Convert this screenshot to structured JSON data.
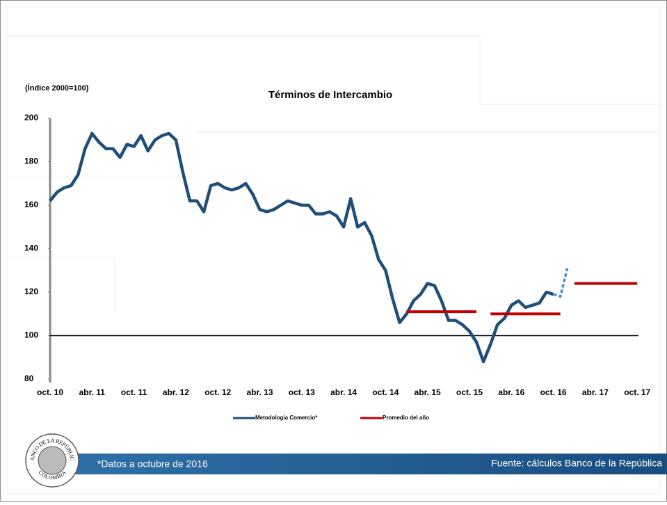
{
  "chart_data": {
    "type": "line",
    "title": "Términos de Intercambio",
    "y_label": "(Índice 2000=100)",
    "categories": [
      "oct. 10",
      null,
      null,
      null,
      null,
      null,
      "abr. 11",
      null,
      null,
      null,
      null,
      null,
      "oct. 11",
      null,
      null,
      null,
      null,
      null,
      "abr. 12",
      null,
      null,
      null,
      null,
      null,
      "oct. 12",
      null,
      null,
      null,
      null,
      null,
      "abr. 13",
      null,
      null,
      null,
      null,
      null,
      "oct. 13",
      null,
      null,
      null,
      null,
      null,
      "abr. 14",
      null,
      null,
      null,
      null,
      null,
      "oct. 14",
      null,
      null,
      null,
      null,
      null,
      "abr. 15",
      null,
      null,
      null,
      null,
      null,
      "oct. 15",
      null,
      null,
      null,
      null,
      null,
      "abr. 16",
      null,
      null,
      null,
      null,
      null,
      "oct. 16",
      null,
      null,
      null,
      null,
      null,
      "abr. 17",
      null,
      null,
      null,
      null,
      null,
      "oct. 17"
    ],
    "series": [
      {
        "name": "Metodología Comercio*",
        "color": "#1f4e79",
        "dashed_color": "#4a90d0",
        "values": [
          162,
          166,
          168,
          169,
          174,
          186,
          193,
          189,
          186,
          186,
          182,
          188,
          187,
          192,
          185,
          190,
          192,
          193,
          190,
          175,
          162,
          162,
          157,
          169,
          170,
          168,
          167,
          168,
          170,
          165,
          158,
          157,
          158,
          160,
          162,
          161,
          160,
          160,
          156,
          156,
          157,
          155,
          150,
          163,
          150,
          152,
          146,
          135,
          130,
          117,
          106,
          110,
          116,
          119,
          124,
          123,
          116,
          107,
          107,
          105,
          102,
          97,
          88,
          96,
          105,
          108,
          114,
          116,
          113,
          114,
          115,
          120,
          119,
          null,
          null,
          null,
          null,
          null,
          null,
          null,
          null,
          null,
          null,
          null,
          null
        ],
        "dashed_values": [
          null,
          null,
          null,
          null,
          null,
          null,
          null,
          null,
          null,
          null,
          null,
          null,
          null,
          null,
          null,
          null,
          null,
          null,
          null,
          null,
          null,
          null,
          null,
          null,
          null,
          null,
          null,
          null,
          null,
          null,
          null,
          null,
          null,
          null,
          null,
          null,
          null,
          null,
          null,
          null,
          null,
          null,
          null,
          null,
          null,
          null,
          null,
          null,
          null,
          null,
          null,
          null,
          null,
          null,
          null,
          null,
          null,
          null,
          null,
          null,
          null,
          null,
          null,
          null,
          null,
          null,
          null,
          null,
          null,
          null,
          null,
          null,
          119,
          118,
          131,
          null,
          null,
          null,
          null,
          null,
          null,
          null,
          null,
          null,
          null
        ]
      },
      {
        "name": "Promedio del año",
        "color": "#c00000",
        "values": [
          null,
          null,
          null,
          null,
          null,
          null,
          null,
          null,
          null,
          null,
          null,
          null,
          null,
          null,
          null,
          null,
          null,
          null,
          null,
          null,
          null,
          null,
          null,
          null,
          null,
          null,
          null,
          null,
          null,
          null,
          null,
          null,
          null,
          null,
          null,
          null,
          null,
          null,
          null,
          null,
          null,
          null,
          null,
          null,
          null,
          null,
          null,
          null,
          null,
          null,
          null,
          111,
          111,
          111,
          111,
          111,
          111,
          111,
          111,
          111,
          111,
          111,
          null,
          110,
          110,
          110,
          110,
          110,
          110,
          110,
          110,
          110,
          110,
          110,
          null,
          124,
          124,
          124,
          124,
          124,
          124,
          124,
          124,
          124,
          124
        ]
      }
    ],
    "ylim": [
      80,
      200
    ],
    "yticks": [
      80,
      100,
      120,
      140,
      160,
      180,
      200
    ],
    "baseline": 100,
    "legend": "bottom"
  },
  "footer": {
    "note": "*Datos a octubre de 2016",
    "source": "Fuente: cálculos Banco de la República"
  },
  "logo": {
    "top": "BANCO DE LA REPÚBLICA",
    "bottom": "COLOMBIA"
  }
}
